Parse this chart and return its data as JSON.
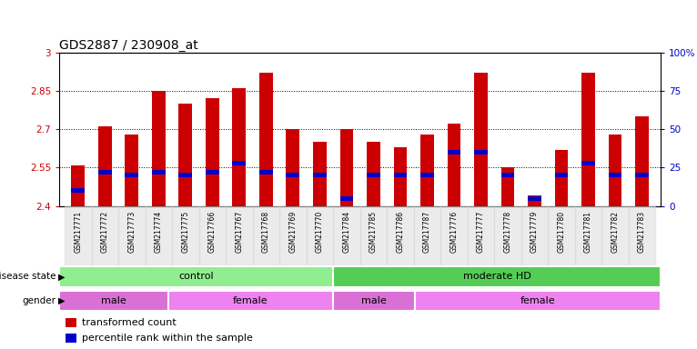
{
  "title": "GDS2887 / 230908_at",
  "samples": [
    "GSM217771",
    "GSM217772",
    "GSM217773",
    "GSM217774",
    "GSM217775",
    "GSM217766",
    "GSM217767",
    "GSM217768",
    "GSM217769",
    "GSM217770",
    "GSM217784",
    "GSM217785",
    "GSM217786",
    "GSM217787",
    "GSM217776",
    "GSM217777",
    "GSM217778",
    "GSM217779",
    "GSM217780",
    "GSM217781",
    "GSM217782",
    "GSM217783"
  ],
  "bar_values": [
    2.56,
    2.71,
    2.68,
    2.85,
    2.8,
    2.82,
    2.86,
    2.92,
    2.7,
    2.65,
    2.7,
    2.65,
    2.63,
    2.68,
    2.72,
    2.92,
    2.55,
    2.44,
    2.62,
    2.92,
    2.68,
    2.75
  ],
  "percentile_ranks": [
    10,
    22,
    20,
    22,
    20,
    22,
    28,
    22,
    20,
    20,
    5,
    20,
    20,
    20,
    35,
    35,
    20,
    5,
    20,
    28,
    20,
    20
  ],
  "ymin": 2.4,
  "ymax": 3.0,
  "y_ticks": [
    2.4,
    2.55,
    2.7,
    2.85,
    3.0
  ],
  "y_tick_labels": [
    "2.4",
    "2.55",
    "2.7",
    "2.85",
    "3"
  ],
  "right_y_ticks": [
    0,
    25,
    50,
    75,
    100
  ],
  "right_y_labels": [
    "0",
    "25",
    "50",
    "75",
    "100%"
  ],
  "bar_color": "#cc0000",
  "marker_color": "#0000cc",
  "grid_ticks": [
    2.55,
    2.7,
    2.85
  ],
  "disease_state_groups": [
    {
      "label": "control",
      "start": 0,
      "end": 10,
      "color": "#90ee90"
    },
    {
      "label": "moderate HD",
      "start": 10,
      "end": 22,
      "color": "#55cc55"
    }
  ],
  "gender_groups": [
    {
      "label": "male",
      "start": 0,
      "end": 4,
      "color": "#da70d6"
    },
    {
      "label": "female",
      "start": 4,
      "end": 10,
      "color": "#ee82ee"
    },
    {
      "label": "male",
      "start": 10,
      "end": 13,
      "color": "#da70d6"
    },
    {
      "label": "female",
      "start": 13,
      "end": 22,
      "color": "#ee82ee"
    }
  ],
  "plot_bg": "#ffffff",
  "title_fontsize": 10,
  "tick_fontsize": 7.5,
  "xtick_fontsize": 5.5,
  "panel_fontsize": 8,
  "legend_fontsize": 8
}
